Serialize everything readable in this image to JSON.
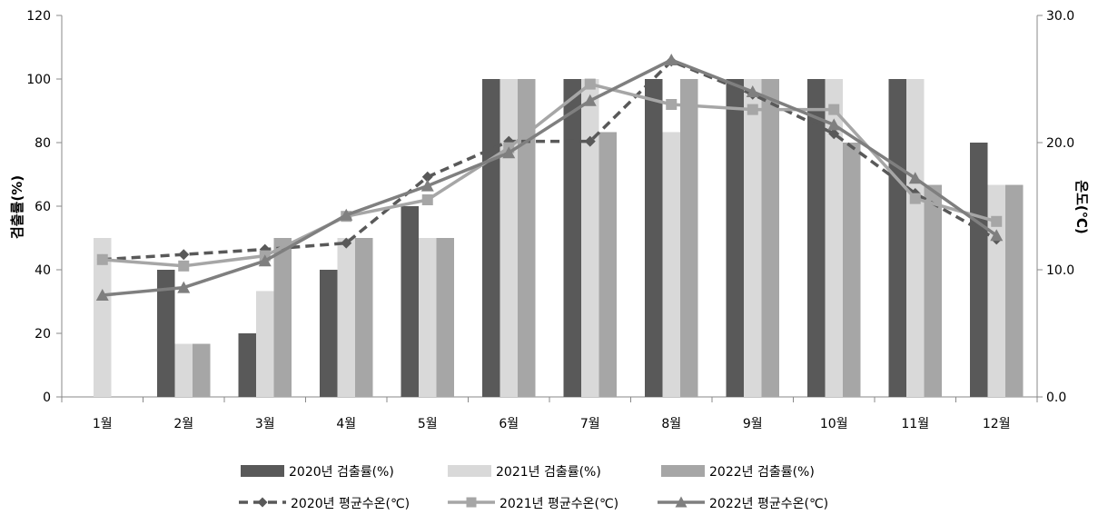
{
  "chart_data": {
    "type": "bar",
    "categories": [
      "1월",
      "2월",
      "3월",
      "4월",
      "5월",
      "6월",
      "7월",
      "8월",
      "9월",
      "10월",
      "11월",
      "12월"
    ],
    "bar_series": [
      {
        "name": "2020년 검출률(%)",
        "color": "#595959",
        "values": [
          0,
          40,
          20,
          40,
          60,
          100,
          100,
          100,
          100,
          100,
          100,
          80
        ]
      },
      {
        "name": "2021년 검출률(%)",
        "color": "#d9d9d9",
        "values": [
          50,
          16.7,
          33.3,
          50,
          50,
          100,
          100,
          83.3,
          100,
          100,
          100,
          66.7
        ]
      },
      {
        "name": "2022년 검출률(%)",
        "color": "#a6a6a6",
        "values": [
          0,
          16.7,
          50,
          50,
          50,
          100,
          83.3,
          100,
          100,
          80,
          66.7,
          66.7
        ]
      }
    ],
    "line_series": [
      {
        "name": "2020년 평균수온(℃)",
        "color": "#595959",
        "dash": true,
        "marker": "diamond",
        "values": [
          10.8,
          11.2,
          11.6,
          12.1,
          17.3,
          20.1,
          20.1,
          26.4,
          23.8,
          20.7,
          16.0,
          12.4
        ]
      },
      {
        "name": "2021년 평균수온(℃)",
        "color": "#a6a6a6",
        "dash": false,
        "marker": "square",
        "values": [
          10.8,
          10.3,
          11.1,
          14.2,
          15.5,
          19.6,
          24.6,
          23.0,
          22.6,
          22.6,
          15.6,
          13.8
        ]
      },
      {
        "name": "2022년 평균수온(℃)",
        "color": "#7f7f7f",
        "dash": false,
        "marker": "triangle",
        "values": [
          8.0,
          8.6,
          10.7,
          14.3,
          16.6,
          19.2,
          23.3,
          26.5,
          24.0,
          21.4,
          17.2,
          12.7
        ]
      }
    ],
    "ylabel_left": "검출률(%)",
    "ylabel_right": "온도(℃)",
    "ylim_left": [
      0,
      120
    ],
    "ylim_right": [
      0,
      30
    ],
    "yticks_left": [
      "0",
      "20",
      "40",
      "60",
      "80",
      "100",
      "120"
    ],
    "yticks_right": [
      "0.0",
      "10.0",
      "20.0",
      "30.0"
    ],
    "grid": false,
    "legend_position": "bottom"
  }
}
